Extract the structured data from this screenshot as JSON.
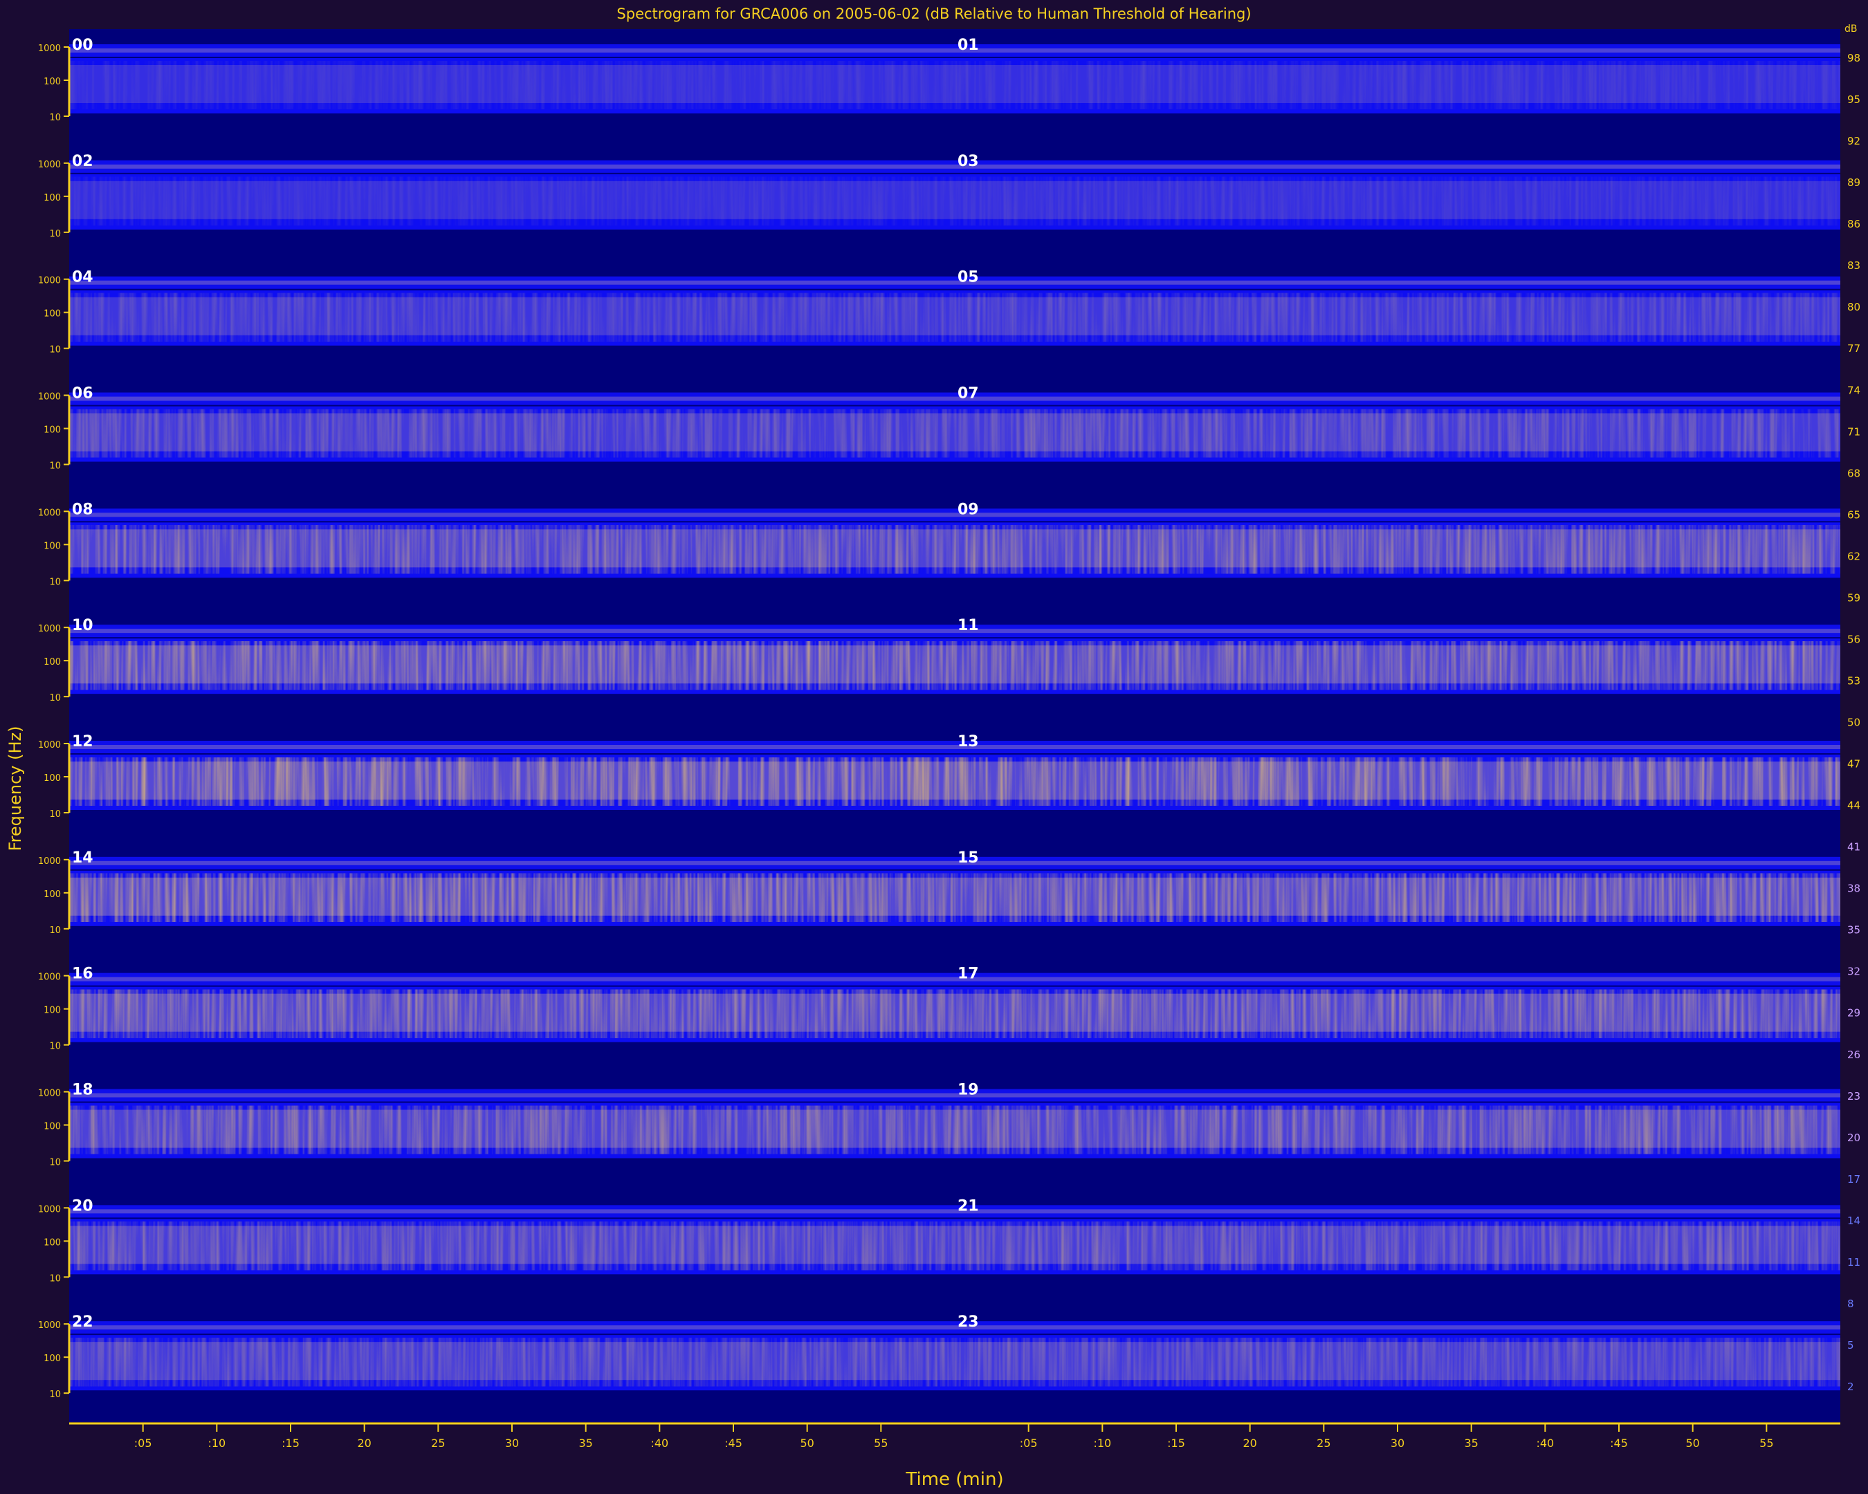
{
  "chart_data": {
    "type": "heatmap",
    "title": "Spectrogram for GRCA006 on 2005-06-02 (dB Relative to Human Threshold of Hearing)",
    "xlabel": "Time (min)",
    "ylabel": "Frequency (Hz)",
    "panel_hours": [
      "00",
      "01",
      "02",
      "03",
      "04",
      "05",
      "06",
      "07",
      "08",
      "09",
      "10",
      "11",
      "12",
      "13",
      "14",
      "15",
      "16",
      "17",
      "18",
      "19",
      "20",
      "21",
      "22",
      "23"
    ],
    "frequency_ticks": [
      "1000",
      "100",
      "10"
    ],
    "time_ticks": [
      ":05",
      ":10",
      ":15",
      "20",
      "25",
      "30",
      "35",
      ":40",
      ":45",
      "50",
      "55"
    ],
    "time_range_min": [
      0,
      60
    ],
    "colorbar_ticks": [
      "98",
      "95",
      "92",
      "89",
      "86",
      "83",
      "80",
      "77",
      "74",
      "71",
      "68",
      "65",
      "62",
      "59",
      "56",
      "53",
      "50",
      "47",
      "44",
      "41",
      "38",
      "35",
      "32",
      "29",
      "26",
      "23",
      "20",
      "17",
      "14",
      "11",
      "8",
      "5",
      "2"
    ],
    "colorbar_top_label": "dB",
    "mean_intensity_by_hour": [
      0.12,
      0.14,
      0.12,
      0.14,
      0.28,
      0.3,
      0.38,
      0.4,
      0.55,
      0.58,
      0.68,
      0.62,
      0.72,
      0.7,
      0.7,
      0.68,
      0.62,
      0.62,
      0.55,
      0.55,
      0.45,
      0.45,
      0.4,
      0.4
    ]
  },
  "colors": {
    "background": "#1a0b33",
    "plot_background": "#00007a",
    "low": "#1010ff",
    "mid": "#6a5acd",
    "high": "#f0a020",
    "axis": "#f5d020"
  }
}
